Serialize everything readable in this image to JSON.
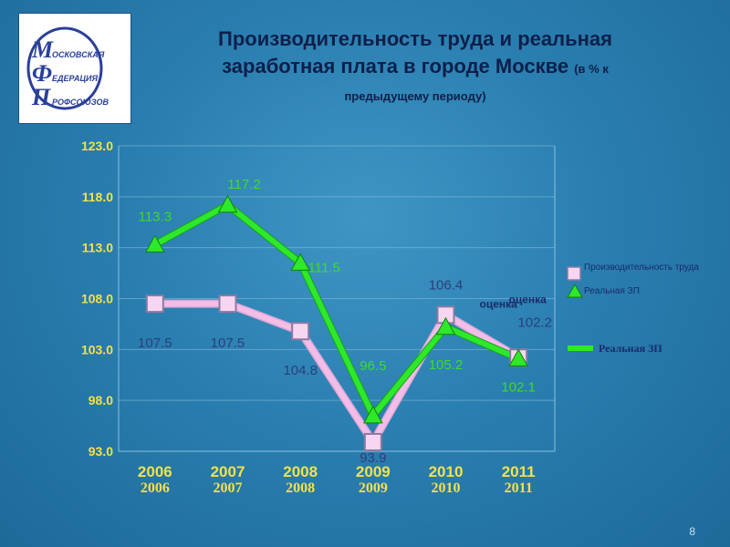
{
  "slide": {
    "title_line1": "Производительность труда и реальная",
    "title_line2": "заработная плата в городе Москве",
    "title_suffix": "(в % к",
    "title_line3": "предыдущему периоду)",
    "page_number": "8"
  },
  "logo": {
    "letter_m": "М",
    "letter_f": "Ф",
    "letter_p": "П",
    "word1": "ОСКОВСКАЯ",
    "word2": "ЕДЕРАЦИЯ",
    "word3": "РОФСОЮЗОВ"
  },
  "colors": {
    "series_productivity": "#f3bde8",
    "series_wage": "#2ee82a",
    "tick_text": "#f2e14a",
    "background": "#2a7fb0"
  },
  "chart_data": {
    "type": "line",
    "title": "Производительность труда и реальная заработная плата в городе Москве (в % к предыдущему периоду)",
    "categories": [
      "2006",
      "2007",
      "2008",
      "2009",
      "2010",
      "2011"
    ],
    "y_ticks": [
      "93.0",
      "98.0",
      "103.0",
      "108.0",
      "113.0",
      "118.0",
      "123.0"
    ],
    "ylim": [
      93,
      123
    ],
    "grid": true,
    "legend_position": "right",
    "series": [
      {
        "name": "Производительность труда",
        "marker": "square",
        "values": [
          107.5,
          107.5,
          104.8,
          93.9,
          106.4,
          102.2
        ],
        "labels": [
          "107.5",
          "107.5",
          "104.8",
          "93.9",
          "106.4",
          "102.2"
        ]
      },
      {
        "name": "Реальная ЗП",
        "marker": "triangle",
        "values": [
          113.3,
          117.2,
          111.5,
          96.5,
          105.2,
          102.1
        ],
        "labels": [
          "113.3",
          "117.2",
          "111.5",
          "96.5",
          "105.2",
          "102.1"
        ]
      }
    ],
    "annotations": [
      {
        "text": "оценка",
        "category": "2011"
      }
    ]
  }
}
